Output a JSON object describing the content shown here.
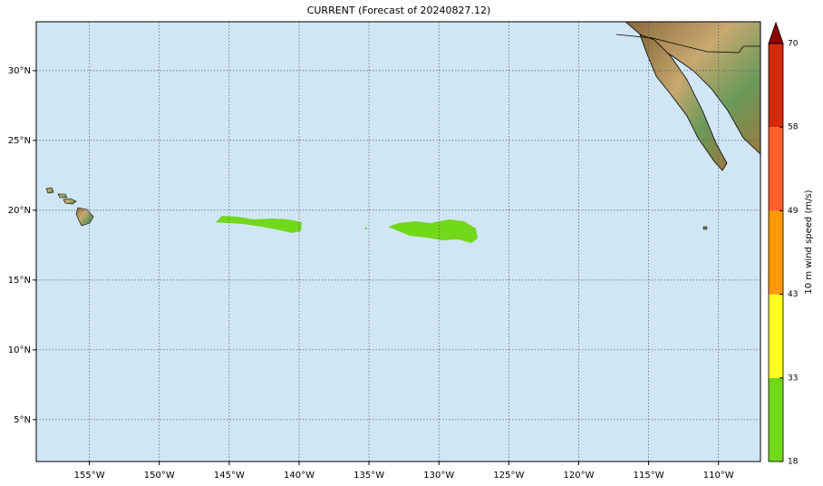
{
  "map": {
    "title": "CURRENT (Forecast of 20240827.12)",
    "xlim": [
      -158.8,
      -107
    ],
    "ylim": [
      2,
      33.5
    ],
    "xticks": [
      {
        "value": -155,
        "label": "155°W"
      },
      {
        "value": -150,
        "label": "150°W"
      },
      {
        "value": -145,
        "label": "145°W"
      },
      {
        "value": -140,
        "label": "140°W"
      },
      {
        "value": -135,
        "label": "135°W"
      },
      {
        "value": -130,
        "label": "130°W"
      },
      {
        "value": -125,
        "label": "125°W"
      },
      {
        "value": -120,
        "label": "120°W"
      },
      {
        "value": -115,
        "label": "115°W"
      },
      {
        "value": -110,
        "label": "110°W"
      }
    ],
    "yticks": [
      {
        "value": 5,
        "label": "5°N"
      },
      {
        "value": 10,
        "label": "10°N"
      },
      {
        "value": 15,
        "label": "15°N"
      },
      {
        "value": 20,
        "label": "20°N"
      },
      {
        "value": 25,
        "label": "25°N"
      },
      {
        "value": 30,
        "label": "30°N"
      }
    ],
    "ocean_color": "#d0e6f5"
  },
  "colorbar": {
    "label": "10 m wind speed (m/s)",
    "ticks": [
      18,
      33,
      43,
      49,
      58,
      70
    ],
    "colors": [
      "#72d81a",
      "#ffff22",
      "#ff9900",
      "#ff5f2a",
      "#d42a0a"
    ],
    "extend_color": "#8b0000"
  }
}
